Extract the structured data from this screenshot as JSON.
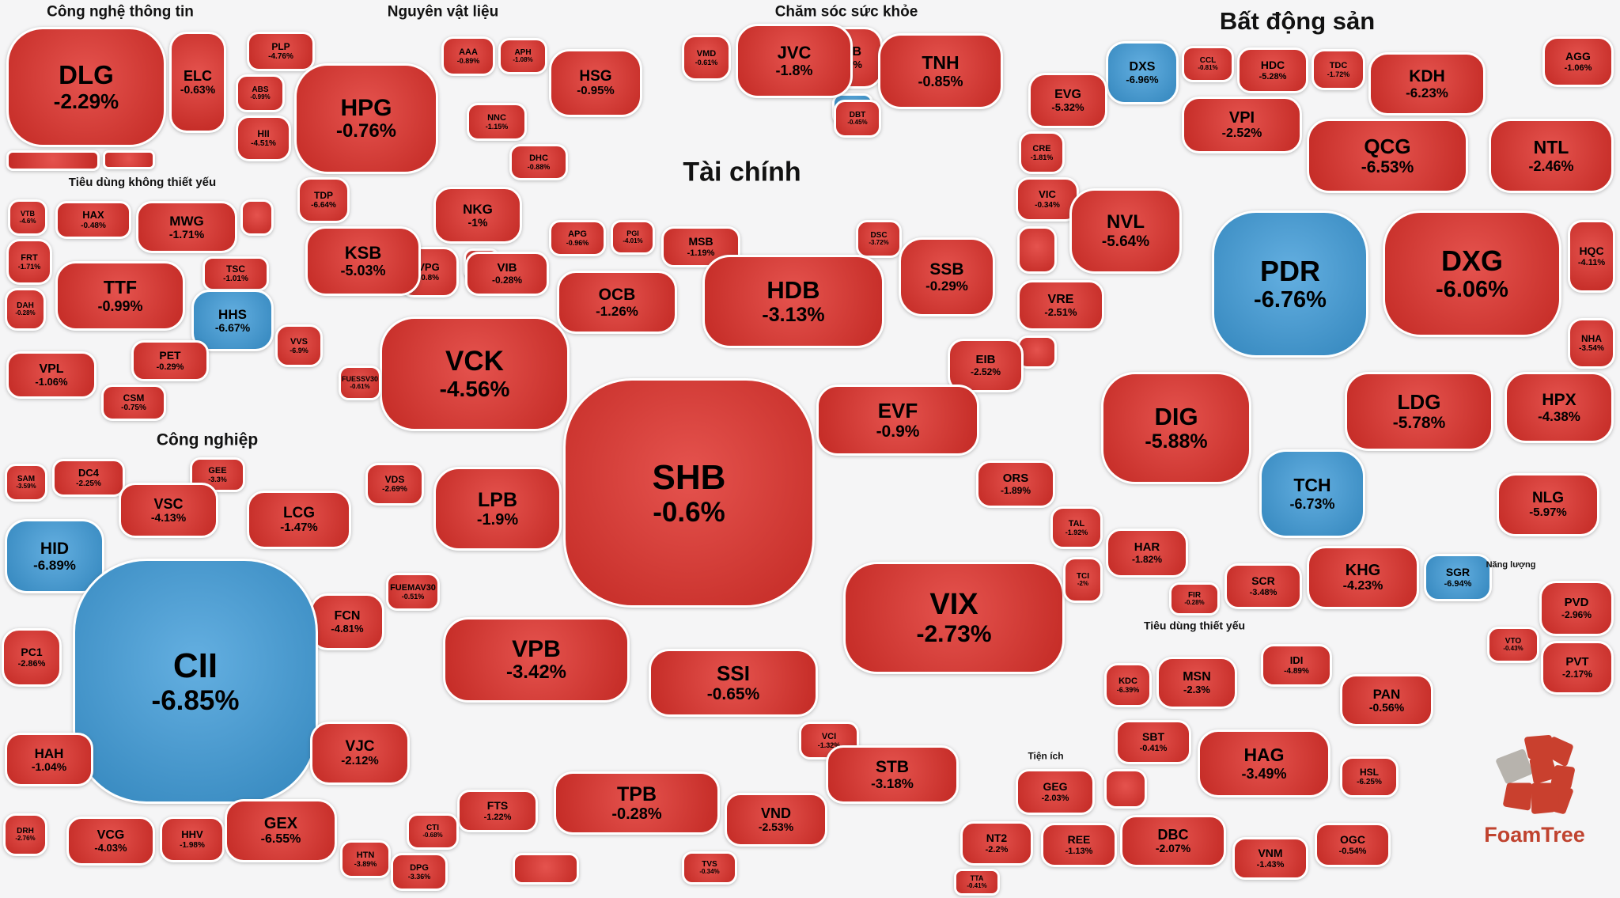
{
  "colors": {
    "red": "#e0322c",
    "blue": "#3d9bd9",
    "background": "#f5f5f6",
    "tile_border": "#ffffff",
    "text": "#000000",
    "brand_red": "#c0432f"
  },
  "attribution": {
    "label": "FoamTree"
  },
  "chart_data": {
    "type": "treemap",
    "unit": "percent_change",
    "groups": [
      {
        "id": "it",
        "label": "Công nghệ thông tin",
        "tiles": [
          {
            "t": "DLG",
            "c": "-2.29%"
          },
          {
            "t": "ELC",
            "c": "-0.63%"
          },
          {
            "t": "",
            "c": ""
          },
          {
            "t": "",
            "c": ""
          }
        ]
      },
      {
        "id": "materials",
        "label": "Nguyên vật liệu",
        "tiles": [
          {
            "t": "PLP",
            "c": "-4.76%"
          },
          {
            "t": "ABS",
            "c": "-0.99%"
          },
          {
            "t": "HII",
            "c": "-4.51%"
          },
          {
            "t": "HPG",
            "c": "-0.76%"
          },
          {
            "t": "AAA",
            "c": "-0.89%"
          },
          {
            "t": "APH",
            "c": "-1.08%"
          },
          {
            "t": "NNC",
            "c": "-1.15%"
          },
          {
            "t": "HSG",
            "c": "-0.95%"
          },
          {
            "t": "DHC",
            "c": "-0.88%"
          },
          {
            "t": "NKG",
            "c": "-1%"
          },
          {
            "t": "VPG",
            "c": "-0.8%"
          },
          {
            "t": "TDP",
            "c": "-6.64%"
          },
          {
            "t": "KSB",
            "c": "-5.03%"
          },
          {
            "t": "",
            "c": ""
          },
          {
            "t": "PTB",
            "c": "-0.6%"
          },
          {
            "t": "",
            "c": "",
            "b": true
          }
        ]
      },
      {
        "id": "health",
        "label": "Chăm sóc sức khỏe",
        "tiles": [
          {
            "t": "VMD",
            "c": "-0.61%"
          },
          {
            "t": "JVC",
            "c": "-1.8%"
          },
          {
            "t": "TNH",
            "c": "-0.85%"
          },
          {
            "t": "DBT",
            "c": "-0.45%"
          }
        ]
      },
      {
        "id": "realestate",
        "label": "Bất động sản",
        "tiles": [
          {
            "t": "DXS",
            "c": "-6.96%",
            "b": true
          },
          {
            "t": "CCL",
            "c": "-0.81%"
          },
          {
            "t": "HDC",
            "c": "-5.28%"
          },
          {
            "t": "TDC",
            "c": "-1.72%"
          },
          {
            "t": "KDH",
            "c": "-6.23%"
          },
          {
            "t": "AGG",
            "c": "-1.06%"
          },
          {
            "t": "EVG",
            "c": "-5.32%"
          },
          {
            "t": "VPI",
            "c": "-2.52%"
          },
          {
            "t": "QCG",
            "c": "-6.53%"
          },
          {
            "t": "NTL",
            "c": "-2.46%"
          },
          {
            "t": "CRE",
            "c": "-1.81%"
          },
          {
            "t": "VIC",
            "c": "-0.34%"
          },
          {
            "t": "NVL",
            "c": "-5.64%"
          },
          {
            "t": "PDR",
            "c": "-6.76%",
            "b": true
          },
          {
            "t": "DXG",
            "c": "-6.06%"
          },
          {
            "t": "HQC",
            "c": "-4.11%"
          },
          {
            "t": "NHA",
            "c": "-3.54%"
          },
          {
            "t": "VRE",
            "c": "-2.51%"
          },
          {
            "t": "DIG",
            "c": "-5.88%"
          },
          {
            "t": "TCH",
            "c": "-6.73%",
            "b": true
          },
          {
            "t": "LDG",
            "c": "-5.78%"
          },
          {
            "t": "HPX",
            "c": "-4.38%"
          },
          {
            "t": "NLG",
            "c": "-5.97%"
          },
          {
            "t": "KHG",
            "c": "-4.23%"
          },
          {
            "t": "SGR",
            "c": "-6.94%",
            "b": true
          },
          {
            "t": "SCR",
            "c": "-3.48%"
          },
          {
            "t": "FIR",
            "c": "-0.28%"
          },
          {
            "t": "HAR",
            "c": "-1.82%"
          },
          {
            "t": "TAL",
            "c": "-1.92%"
          },
          {
            "t": "",
            "c": ""
          },
          {
            "t": "",
            "c": ""
          }
        ]
      },
      {
        "id": "energy",
        "label": "Năng lượng",
        "tiles": [
          {
            "t": "PVD",
            "c": "-2.96%"
          },
          {
            "t": "VTO",
            "c": "-0.43%"
          },
          {
            "t": "PVT",
            "c": "-2.17%"
          }
        ]
      },
      {
        "id": "finance",
        "label": "Tài chính",
        "tiles": [
          {
            "t": "APG",
            "c": "-0.96%"
          },
          {
            "t": "PGI",
            "c": "-4.01%"
          },
          {
            "t": "MSB",
            "c": "-1.19%"
          },
          {
            "t": "DSC",
            "c": "-3.72%"
          },
          {
            "t": "SSB",
            "c": "-0.29%"
          },
          {
            "t": "VIB",
            "c": "-0.28%"
          },
          {
            "t": "OCB",
            "c": "-1.26%"
          },
          {
            "t": "HDB",
            "c": "-3.13%"
          },
          {
            "t": "VCK",
            "c": "-4.56%"
          },
          {
            "t": "EIB",
            "c": "-2.52%"
          },
          {
            "t": "EVF",
            "c": "-0.9%"
          },
          {
            "t": "ORS",
            "c": "-1.89%"
          },
          {
            "t": "SHB",
            "c": "-0.6%"
          },
          {
            "t": "LPB",
            "c": "-1.9%"
          },
          {
            "t": "VDS",
            "c": "-2.69%"
          },
          {
            "t": "FUESSV30",
            "c": "-0.61%"
          },
          {
            "t": "FUEMAV30",
            "c": "-0.51%"
          },
          {
            "t": "VPB",
            "c": "-3.42%"
          },
          {
            "t": "SSI",
            "c": "-0.65%"
          },
          {
            "t": "VIX",
            "c": "-2.73%"
          },
          {
            "t": "TCI",
            "c": "-2%"
          },
          {
            "t": "VCI",
            "c": "-1.32%"
          },
          {
            "t": "STB",
            "c": "-3.18%"
          },
          {
            "t": "TPB",
            "c": "-0.28%"
          },
          {
            "t": "FTS",
            "c": "-1.22%"
          },
          {
            "t": "VND",
            "c": "-2.53%"
          },
          {
            "t": "TVS",
            "c": "-0.34%"
          },
          {
            "t": "",
            "c": ""
          }
        ]
      },
      {
        "id": "industrials",
        "label": "Công nghiệp",
        "tiles": [
          {
            "t": "SAM",
            "c": "-3.59%"
          },
          {
            "t": "DC4",
            "c": "-2.25%"
          },
          {
            "t": "GEE",
            "c": "-3.3%"
          },
          {
            "t": "VSC",
            "c": "-4.13%"
          },
          {
            "t": "LCG",
            "c": "-1.47%"
          },
          {
            "t": "HID",
            "c": "-6.89%",
            "b": true
          },
          {
            "t": "FCN",
            "c": "-4.81%"
          },
          {
            "t": "CII",
            "c": "-6.85%",
            "b": true
          },
          {
            "t": "PC1",
            "c": "-2.86%"
          },
          {
            "t": "HAH",
            "c": "-1.04%"
          },
          {
            "t": "VJC",
            "c": "-2.12%"
          },
          {
            "t": "VCG",
            "c": "-4.03%"
          },
          {
            "t": "HHV",
            "c": "-1.98%"
          },
          {
            "t": "DRH",
            "c": "-2.76%"
          },
          {
            "t": "GEX",
            "c": "-6.55%"
          },
          {
            "t": "HTN",
            "c": "-3.89%"
          },
          {
            "t": "CTI",
            "c": "-0.68%"
          },
          {
            "t": "DPG",
            "c": "-3.36%"
          }
        ]
      },
      {
        "id": "consdisc",
        "label": "Tiêu dùng không thiết yếu",
        "tiles": [
          {
            "t": "VTB",
            "c": "-4.6%"
          },
          {
            "t": "HAX",
            "c": "-0.48%"
          },
          {
            "t": "MWG",
            "c": "-1.71%"
          },
          {
            "t": "TSC",
            "c": "-1.01%"
          },
          {
            "t": "",
            "c": ""
          },
          {
            "t": "FRT",
            "c": "-1.71%"
          },
          {
            "t": "TTF",
            "c": "-0.99%"
          },
          {
            "t": "HHS",
            "c": "-6.67%",
            "b": true
          },
          {
            "t": "DAH",
            "c": "-0.28%"
          },
          {
            "t": "PET",
            "c": "-0.29%"
          },
          {
            "t": "VVS",
            "c": "-6.9%"
          },
          {
            "t": "VPL",
            "c": "-1.06%"
          },
          {
            "t": "CSM",
            "c": "-0.75%"
          }
        ]
      },
      {
        "id": "utilities",
        "label": "Tiện ích",
        "tiles": [
          {
            "t": "GEG",
            "c": "-2.03%"
          },
          {
            "t": "NT2",
            "c": "-2.2%"
          },
          {
            "t": "REE",
            "c": "-1.13%"
          },
          {
            "t": "TTA",
            "c": "-0.41%"
          }
        ]
      },
      {
        "id": "staples",
        "label": "Tiêu dùng thiết yếu",
        "tiles": [
          {
            "t": "KDC",
            "c": "-6.39%"
          },
          {
            "t": "MSN",
            "c": "-2.3%"
          },
          {
            "t": "IDI",
            "c": "-4.89%"
          },
          {
            "t": "PAN",
            "c": "-0.56%"
          },
          {
            "t": "SBT",
            "c": "-0.41%"
          },
          {
            "t": "HAG",
            "c": "-3.49%"
          },
          {
            "t": "HSL",
            "c": "-6.25%"
          },
          {
            "t": "DBC",
            "c": "-2.07%"
          },
          {
            "t": "VNM",
            "c": "-1.43%"
          },
          {
            "t": "OGC",
            "c": "-0.54%"
          },
          {
            "t": "",
            "c": ""
          }
        ]
      }
    ]
  }
}
